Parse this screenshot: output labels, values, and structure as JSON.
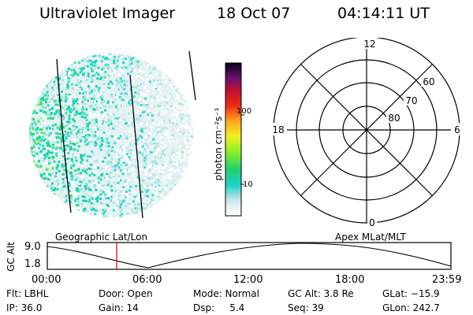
{
  "header": {
    "title": "Ultraviolet Imager",
    "date": "18 Oct 07",
    "time": "04:14:11 UT"
  },
  "colorbar": {
    "unit_label": "photon cm⁻²s⁻¹",
    "tick_labels": [
      "100",
      "10"
    ]
  },
  "polar_plot": {
    "mlt_labels": {
      "top": "12",
      "left": "18",
      "right": "6",
      "bottom": "0"
    },
    "lat_labels": [
      "60",
      "70",
      "80"
    ]
  },
  "projection_labels": {
    "left": "Geographic Lat/Lon",
    "right": "Apex  MLat/MLT"
  },
  "orbit_plot": {
    "ylabel": "GC Alt",
    "yticks": [
      "9.0",
      "1.8"
    ],
    "xticks": [
      "00:00",
      "06:00",
      "12:00",
      "18:00",
      "23:59"
    ],
    "current_time_marker_color": "#d00000"
  },
  "footer": {
    "row1": [
      "Flt: LBHL",
      "Door: Open",
      "Mode: Normal",
      "GC Alt: 3.8 Re",
      "GLat: −15.9"
    ],
    "row2": [
      "IP: 36.0",
      "Gain: 14",
      "Dsp:     5.4",
      "Seq: 39",
      "GLon: 242.7"
    ]
  }
}
